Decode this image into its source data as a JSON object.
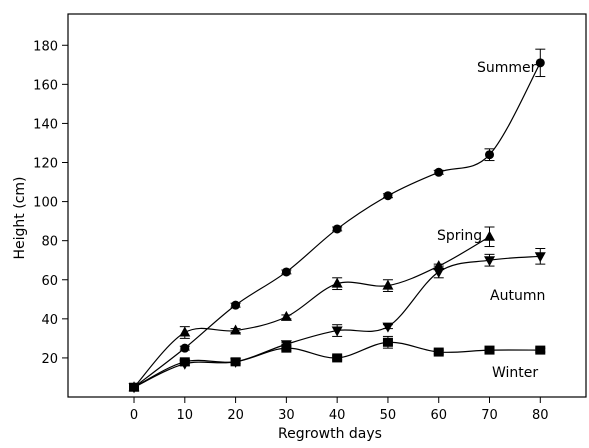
{
  "chart_data": {
    "type": "line",
    "title": "",
    "xlabel": "Regrowth days",
    "ylabel": "Height (cm)",
    "x": [
      0,
      10,
      20,
      30,
      40,
      50,
      60,
      70,
      80
    ],
    "xticks": [
      "0",
      "10",
      "20",
      "30",
      "40",
      "50",
      "60",
      "70",
      "80"
    ],
    "yticks": [
      "20",
      "40",
      "60",
      "80",
      "100",
      "120",
      "140",
      "160",
      "180"
    ],
    "xlim": [
      -13,
      89
    ],
    "ylim": [
      0,
      196
    ],
    "grid": false,
    "series": [
      {
        "name": "Summer",
        "marker": "circle",
        "values": [
          5,
          25,
          47,
          64,
          86,
          103,
          115,
          124,
          171
        ],
        "errors": [
          0,
          1,
          1,
          1,
          1,
          1,
          1,
          3,
          7
        ]
      },
      {
        "name": "Spring",
        "marker": "triangle-up",
        "values": [
          5,
          33,
          34,
          41,
          58,
          57,
          67,
          82,
          null
        ],
        "errors": [
          0,
          3,
          1,
          1,
          3,
          3,
          1,
          5,
          0
        ]
      },
      {
        "name": "Autumn",
        "marker": "triangle-down",
        "values": [
          5,
          17,
          18,
          27,
          34,
          36,
          64,
          70,
          72
        ],
        "errors": [
          0,
          1,
          1,
          1,
          3,
          1,
          3,
          3,
          4
        ]
      },
      {
        "name": "Winter",
        "marker": "square",
        "values": [
          5,
          18,
          18,
          25,
          20,
          28,
          23,
          24,
          24
        ],
        "errors": [
          0,
          1,
          1,
          1,
          1,
          3,
          1,
          1,
          1
        ]
      }
    ]
  }
}
